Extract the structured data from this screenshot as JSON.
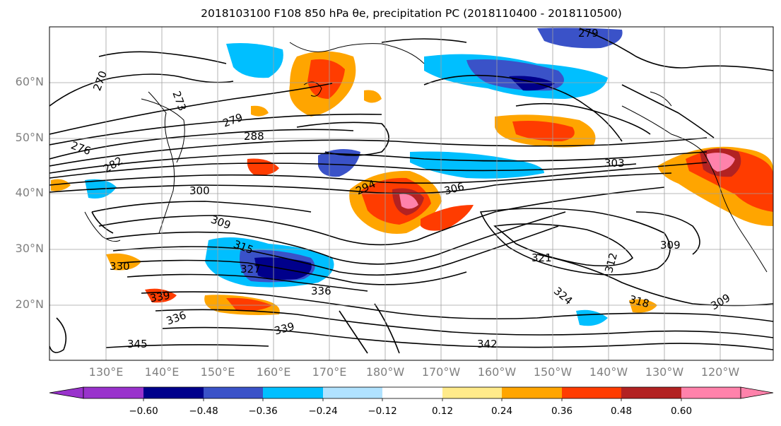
{
  "title": "2018103100 F108 850 hPa θe, precipitation PC (2018110400 - 2018110500)",
  "map": {
    "lat_labels": [
      "60°N",
      "50°N",
      "40°N",
      "30°N",
      "20°N"
    ],
    "lon_labels": [
      "130°E",
      "140°E",
      "150°E",
      "160°E",
      "170°E",
      "180°W",
      "170°W",
      "160°W",
      "150°W",
      "140°W",
      "130°W",
      "120°W"
    ],
    "contour_labels": [
      "270",
      "273",
      "276",
      "279",
      "279",
      "282",
      "288",
      "294",
      "300",
      "303",
      "306",
      "309",
      "309",
      "309",
      "312",
      "315",
      "318",
      "321",
      "324",
      "327",
      "330",
      "336",
      "336",
      "339",
      "339",
      "342",
      "345"
    ],
    "colors": {
      "contour": "#000000",
      "grid": "#a0a0a0",
      "axis_label": "#808080"
    }
  },
  "colorbar": {
    "tick_labels": [
      "−0.60",
      "−0.48",
      "−0.36",
      "−0.24",
      "−0.12",
      "0.12",
      "0.24",
      "0.36",
      "0.48",
      "0.60"
    ],
    "colors": [
      "#9932cc",
      "#00008b",
      "#3a52c8",
      "#00bfff",
      "#b0e2ff",
      "#ffffff",
      "#ffea8a",
      "#ffa500",
      "#ff3c00",
      "#b22222",
      "#ff82ab"
    ]
  }
}
